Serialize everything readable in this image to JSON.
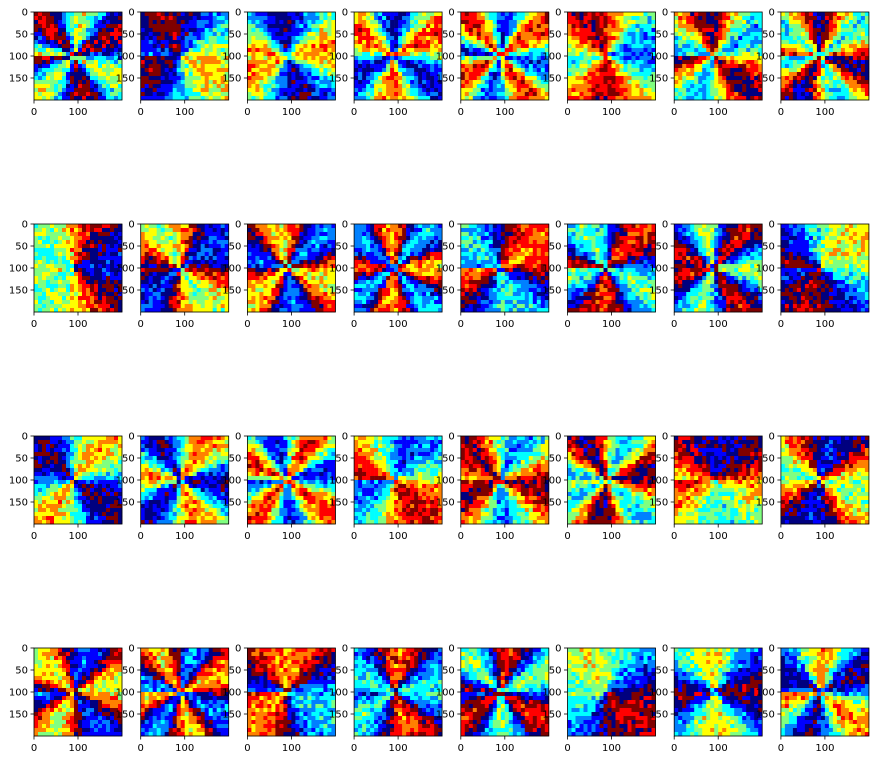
{
  "figure": {
    "rows": 4,
    "cols": 8,
    "image_colormap": "jet"
  },
  "chart_data": {
    "type": "heatmap",
    "subplots": 32,
    "x_ticks": [
      "0",
      "100"
    ],
    "y_ticks": [
      "0",
      "50",
      "100",
      "150"
    ],
    "x_range": [
      0,
      200
    ],
    "y_range": [
      200,
      0
    ],
    "grid": false,
    "legend": "none",
    "colormap": [
      "#00007f",
      "#0000ff",
      "#0080ff",
      "#00ffff",
      "#80ff80",
      "#ffff00",
      "#ff8000",
      "#ff0000",
      "#7f0000"
    ]
  }
}
